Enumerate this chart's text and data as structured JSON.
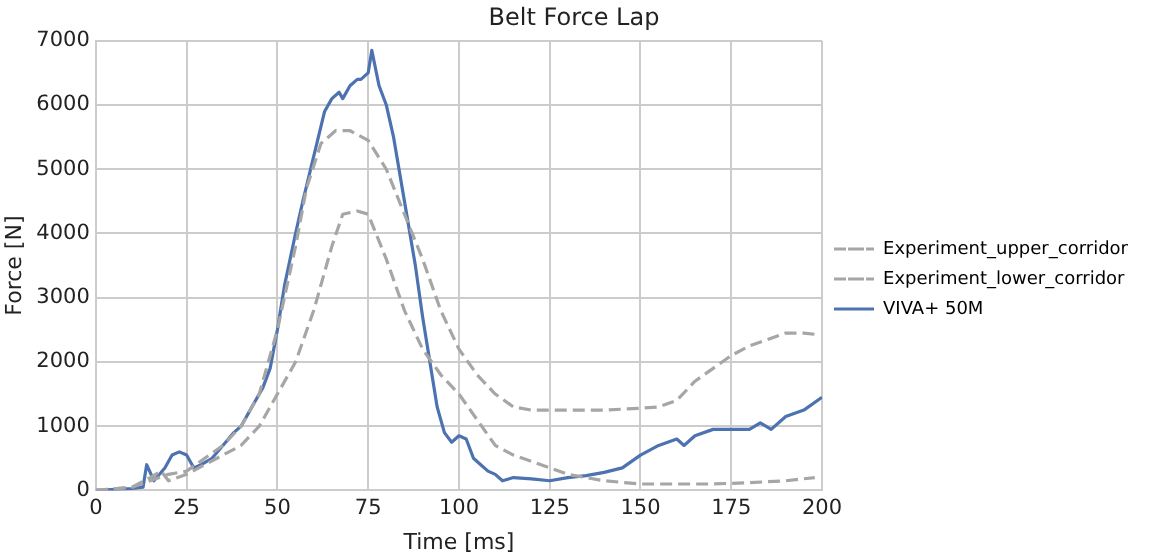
{
  "chart_data": {
    "type": "line",
    "title": "Belt Force Lap",
    "xlabel": "Time [ms]",
    "ylabel": "Force [N]",
    "xlim": [
      0,
      200
    ],
    "xticks": [
      0,
      25,
      50,
      75,
      100,
      125,
      150,
      175,
      200
    ],
    "ylim": [
      0,
      7000
    ],
    "yticks": [
      0,
      1000,
      2000,
      3000,
      4000,
      5000,
      6000,
      7000
    ],
    "grid": true,
    "legend": "right",
    "marker": "none",
    "series": [
      {
        "name": "Experiment_upper_corridor",
        "color": "#a6a6a6",
        "line_style": "dashed",
        "x": [
          0,
          10,
          15,
          20,
          25,
          30,
          35,
          40,
          45,
          50,
          55,
          58,
          62,
          66,
          70,
          75,
          80,
          85,
          90,
          95,
          100,
          105,
          110,
          115,
          120,
          130,
          140,
          150,
          155,
          160,
          165,
          170,
          175,
          180,
          185,
          190,
          195,
          198
        ],
        "values": [
          0,
          50,
          150,
          250,
          300,
          500,
          700,
          1000,
          1500,
          2500,
          3800,
          4700,
          5400,
          5600,
          5600,
          5450,
          5000,
          4300,
          3600,
          2800,
          2200,
          1800,
          1500,
          1300,
          1250,
          1250,
          1250,
          1280,
          1300,
          1400,
          1700,
          1900,
          2100,
          2250,
          2350,
          2450,
          2450,
          2430
        ]
      },
      {
        "name": "Experiment_lower_corridor",
        "color": "#a6a6a6",
        "line_style": "dashed",
        "x": [
          0,
          10,
          15,
          18,
          20,
          25,
          30,
          35,
          40,
          45,
          50,
          55,
          60,
          65,
          68,
          72,
          75,
          80,
          85,
          90,
          95,
          100,
          105,
          110,
          115,
          120,
          125,
          130,
          140,
          150,
          160,
          170,
          180,
          190,
          198
        ],
        "values": [
          0,
          50,
          200,
          300,
          150,
          250,
          400,
          550,
          700,
          1000,
          1500,
          2000,
          2800,
          3800,
          4300,
          4350,
          4300,
          3600,
          2800,
          2200,
          1800,
          1500,
          1100,
          700,
          550,
          450,
          350,
          250,
          150,
          100,
          100,
          100,
          120,
          150,
          200
        ]
      },
      {
        "name": "VIVA+ 50M",
        "color": "#4c72b0",
        "line_style": "solid",
        "x": [
          0,
          10,
          13,
          14,
          16,
          19,
          21,
          23,
          25,
          27,
          29,
          32,
          35,
          38,
          40,
          43,
          46,
          48,
          50,
          52,
          55,
          57,
          60,
          63,
          65,
          67,
          68,
          70,
          72,
          73,
          75,
          76,
          78,
          80,
          82,
          85,
          88,
          90,
          92,
          94,
          96,
          98,
          100,
          102,
          104,
          106,
          108,
          110,
          112,
          115,
          120,
          125,
          130,
          135,
          140,
          145,
          150,
          155,
          160,
          162,
          165,
          170,
          175,
          180,
          183,
          186,
          190,
          195,
          200
        ],
        "values": [
          0,
          30,
          50,
          400,
          150,
          350,
          550,
          600,
          550,
          350,
          400,
          500,
          700,
          900,
          1000,
          1300,
          1600,
          1900,
          2500,
          3200,
          4000,
          4500,
          5200,
          5900,
          6100,
          6200,
          6100,
          6300,
          6400,
          6400,
          6500,
          6850,
          6300,
          6000,
          5500,
          4500,
          3500,
          2700,
          2000,
          1300,
          900,
          750,
          850,
          800,
          500,
          400,
          300,
          250,
          150,
          200,
          180,
          150,
          200,
          230,
          280,
          350,
          550,
          700,
          800,
          700,
          850,
          950,
          950,
          950,
          1050,
          950,
          1150,
          1250,
          1450
        ]
      }
    ]
  }
}
